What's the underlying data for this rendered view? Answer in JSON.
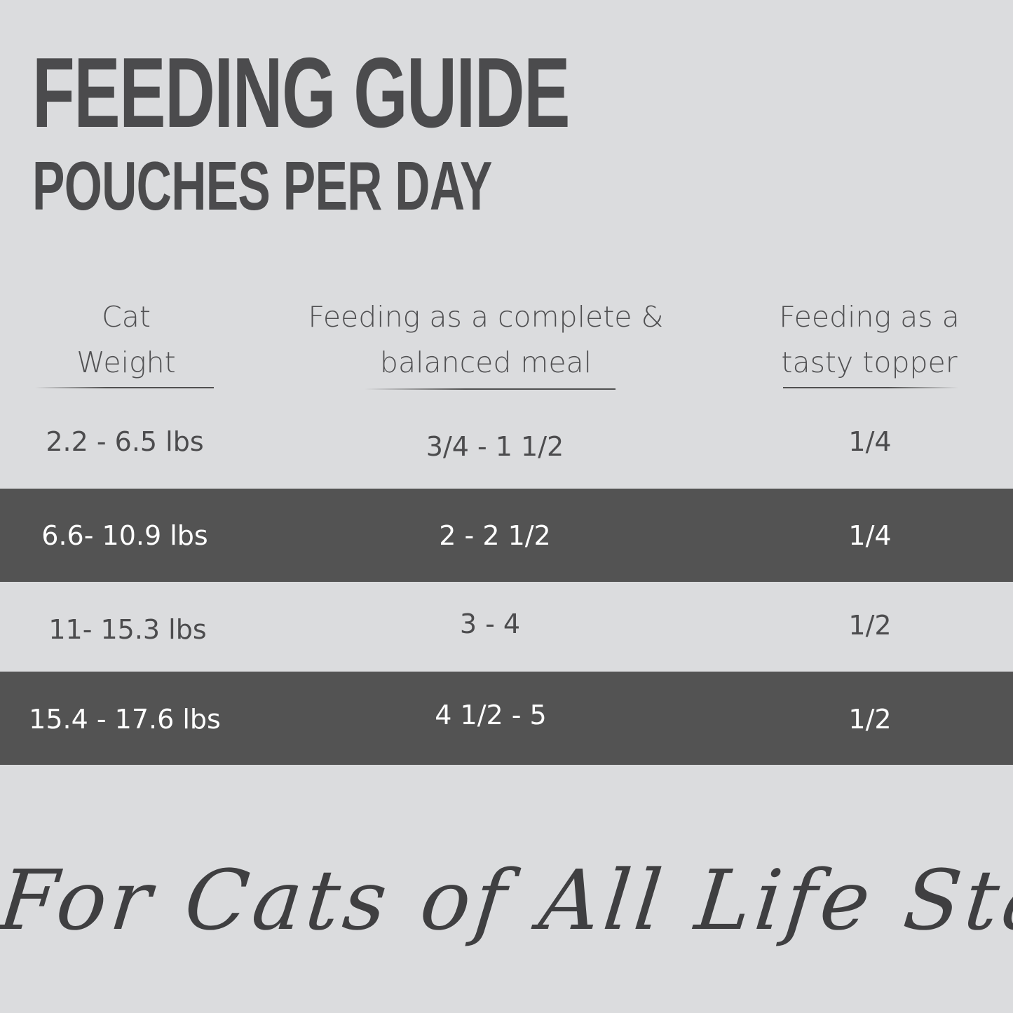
{
  "title": "FEEDING GUIDE",
  "subtitle": "POUCHES PER DAY",
  "table": {
    "headers": [
      {
        "line1": "Cat",
        "line2": "Weight"
      },
      {
        "line1": "Feeding as a complete &",
        "line2": "balanced meal"
      },
      {
        "line1": "Feeding as a",
        "line2": "tasty topper"
      }
    ],
    "rows": [
      {
        "weight": "2.2 - 6.5 lbs",
        "meal": "3/4 - 1 1/2",
        "topper": "1/4",
        "highlighted": false
      },
      {
        "weight": "6.6- 10.9 lbs",
        "meal": "2 - 2 1/2",
        "topper": "1/4",
        "highlighted": true
      },
      {
        "weight": "11- 15.3 lbs",
        "meal": "3 - 4",
        "topper": "1/2",
        "highlighted": false
      },
      {
        "weight": "15.4 - 17.6 lbs",
        "meal": "4 1/2 - 5",
        "topper": "1/2",
        "highlighted": true
      }
    ]
  },
  "tagline": "For Cats of All Life Stages",
  "colors": {
    "background": "#dbdcde",
    "highlight_row": "#535353",
    "text": "#4c4c4e"
  }
}
